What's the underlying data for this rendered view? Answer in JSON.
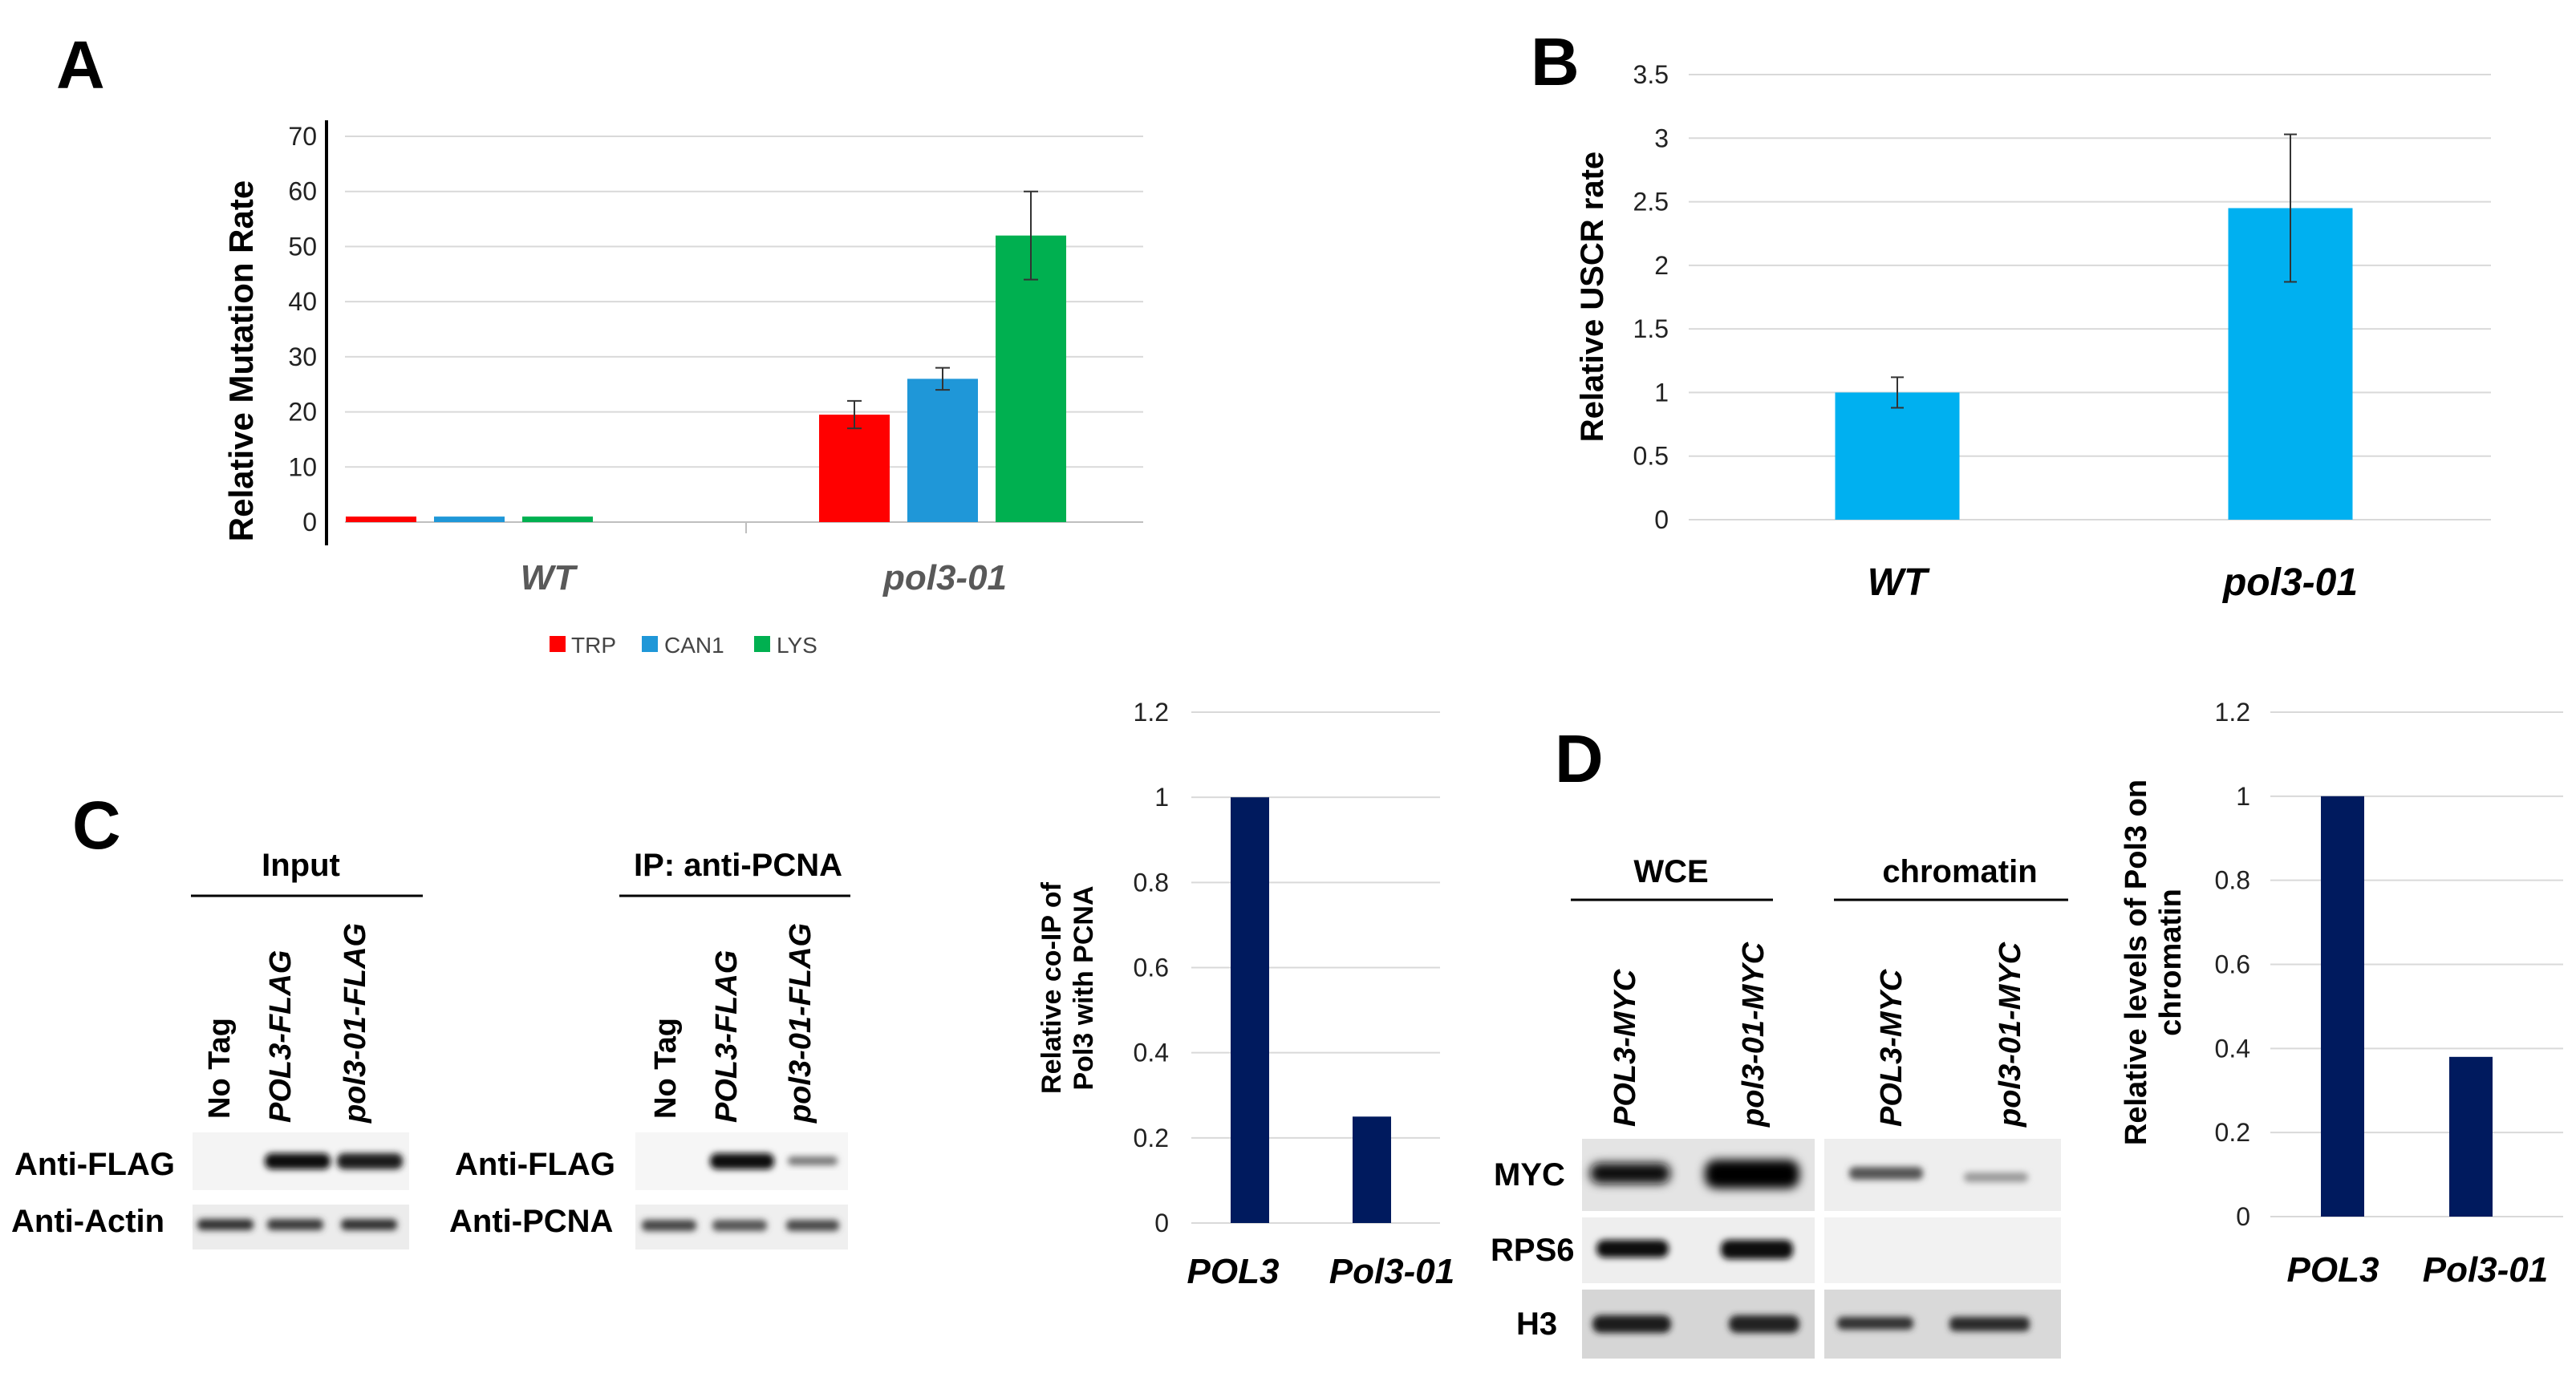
{
  "panels": {
    "a": "A",
    "b": "B",
    "c": "C",
    "d": "D"
  },
  "colors": {
    "trp": "#ff0000",
    "can1": "#1f97d8",
    "lys": "#00b050",
    "uscr": "#00b0f0",
    "navy": "#001a5e",
    "grid": "#d9d9d9"
  },
  "chart_data": [
    {
      "id": "A",
      "type": "bar",
      "categories": [
        "WT",
        "pol3-01"
      ],
      "series": [
        {
          "name": "TRP",
          "values": [
            1,
            19.5
          ],
          "errors": [
            0,
            2.5
          ]
        },
        {
          "name": "CAN1",
          "values": [
            1,
            26
          ],
          "errors": [
            0,
            2
          ]
        },
        {
          "name": "LYS",
          "values": [
            1,
            52
          ],
          "errors": [
            0,
            8
          ]
        }
      ],
      "yticks": [
        "0",
        "10",
        "20",
        "30",
        "40",
        "50",
        "60",
        "70"
      ],
      "ylim": [
        0,
        70
      ],
      "ylabel": "Relative Mutation Rate",
      "legend": [
        "TRP",
        "CAN1",
        "LYS"
      ],
      "legend_position": "bottom"
    },
    {
      "id": "B",
      "type": "bar",
      "categories": [
        "WT",
        "pol3-01"
      ],
      "values": [
        1,
        2.45
      ],
      "errors": [
        0.12,
        0.58
      ],
      "yticks": [
        "0",
        "0.5",
        "1",
        "1.5",
        "2",
        "2.5",
        "3",
        "3.5"
      ],
      "ylim": [
        0,
        3.5
      ],
      "ylabel": "Relative USCR rate"
    },
    {
      "id": "C",
      "type": "bar",
      "categories": [
        "POL3",
        "Pol3-01"
      ],
      "values": [
        1,
        0.25
      ],
      "yticks": [
        "0",
        "0.2",
        "0.4",
        "0.6",
        "0.8",
        "1",
        "1.2"
      ],
      "ylim": [
        0,
        1.2
      ],
      "ylabel_lines": [
        "Relative co-IP of",
        "Pol3 with PCNA"
      ]
    },
    {
      "id": "D",
      "type": "bar",
      "categories": [
        "POL3",
        "Pol3-01"
      ],
      "values": [
        1,
        0.38
      ],
      "yticks": [
        "0",
        "0.2",
        "0.4",
        "0.6",
        "0.8",
        "1",
        "1.2"
      ],
      "ylim": [
        0,
        1.2
      ],
      "ylabel_lines": [
        "Relative levels of Pol3 on",
        "chromatin"
      ]
    }
  ],
  "blot_c": {
    "input_header": "Input",
    "ip_header": "IP: anti-PCNA",
    "lanes": [
      "No Tag",
      "POL3-FLAG",
      "pol3-01-FLAG"
    ],
    "row_labels_input": [
      "Anti-FLAG",
      "Anti-Actin"
    ],
    "row_labels_ip": [
      "Anti-FLAG",
      "Anti-PCNA"
    ]
  },
  "blot_d": {
    "wce_header": "WCE",
    "chromatin_header": "chromatin",
    "lanes": [
      "POL3-MYC",
      "pol3-01-MYC",
      "POL3-MYC",
      "pol3-01-MYC"
    ],
    "row_labels": [
      "MYC",
      "RPS6",
      "H3"
    ]
  }
}
